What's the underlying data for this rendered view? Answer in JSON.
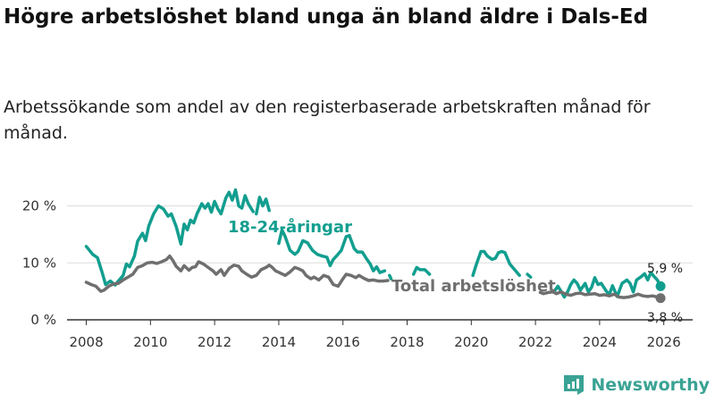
{
  "title": "Högre arbetslöshet bland unga än bland äldre i Dals-Ed",
  "subtitle": "Arbetssökande som andel av den registerbaserade arbetskraften månad för månad.",
  "brand": "Newsworthy",
  "colors": {
    "youth": "#129e8f",
    "total": "#6f6f6f",
    "grid": "#dddddd",
    "axis": "#333333",
    "brand": "#3aa394"
  },
  "chart_data": {
    "type": "line",
    "xlim": [
      2007.4,
      2026.9
    ],
    "ylim": [
      0,
      24
    ],
    "y_ticks": [
      0,
      10,
      20
    ],
    "y_tick_labels": [
      "0 %",
      "10 %",
      "20 %"
    ],
    "x_ticks": [
      "2008",
      "2010",
      "2012",
      "2014",
      "2016",
      "2018",
      "2020",
      "2022",
      "2024",
      "2026"
    ],
    "series": [
      {
        "name": "18-24-åringar",
        "label": "18-24-åringar",
        "end_label": "5,9 %",
        "segments": [
          [
            [
              2008.0,
              12.9
            ],
            [
              2008.2,
              11.5
            ],
            [
              2008.35,
              10.9
            ],
            [
              2008.5,
              8.2
            ],
            [
              2008.6,
              6.2
            ],
            [
              2008.75,
              6.8
            ],
            [
              2008.9,
              6.1
            ],
            [
              2009.0,
              6.8
            ],
            [
              2009.15,
              7.8
            ],
            [
              2009.25,
              9.8
            ],
            [
              2009.35,
              9.3
            ],
            [
              2009.5,
              11.2
            ],
            [
              2009.6,
              13.8
            ],
            [
              2009.75,
              15.2
            ],
            [
              2009.85,
              13.9
            ],
            [
              2009.95,
              16.5
            ],
            [
              2010.1,
              18.6
            ],
            [
              2010.25,
              20.0
            ],
            [
              2010.4,
              19.5
            ],
            [
              2010.55,
              18.2
            ],
            [
              2010.65,
              18.6
            ],
            [
              2010.8,
              16.4
            ],
            [
              2010.95,
              13.3
            ],
            [
              2011.05,
              16.8
            ],
            [
              2011.15,
              15.8
            ],
            [
              2011.25,
              17.5
            ],
            [
              2011.35,
              17.0
            ],
            [
              2011.45,
              18.6
            ],
            [
              2011.6,
              20.4
            ],
            [
              2011.7,
              19.6
            ],
            [
              2011.8,
              20.4
            ],
            [
              2011.9,
              18.9
            ],
            [
              2012.0,
              20.8
            ],
            [
              2012.1,
              19.5
            ],
            [
              2012.2,
              18.6
            ],
            [
              2012.35,
              21.4
            ],
            [
              2012.45,
              22.4
            ],
            [
              2012.55,
              21.0
            ],
            [
              2012.65,
              22.8
            ],
            [
              2012.75,
              20.0
            ],
            [
              2012.85,
              19.6
            ],
            [
              2012.95,
              21.8
            ],
            [
              2013.05,
              20.4
            ],
            [
              2013.2,
              19.0
            ]
          ],
          [
            [
              2013.3,
              18.6
            ],
            [
              2013.4,
              21.5
            ],
            [
              2013.5,
              20.0
            ],
            [
              2013.6,
              21.2
            ],
            [
              2013.7,
              19.2
            ]
          ],
          [
            [
              2014.0,
              13.4
            ],
            [
              2014.1,
              15.8
            ],
            [
              2014.2,
              14.6
            ],
            [
              2014.35,
              12.2
            ],
            [
              2014.5,
              11.5
            ],
            [
              2014.6,
              12.0
            ],
            [
              2014.75,
              13.9
            ],
            [
              2014.9,
              13.5
            ],
            [
              2015.05,
              12.2
            ],
            [
              2015.2,
              11.5
            ],
            [
              2015.35,
              11.2
            ],
            [
              2015.5,
              11.0
            ],
            [
              2015.6,
              9.5
            ],
            [
              2015.7,
              10.6
            ],
            [
              2015.8,
              11.2
            ],
            [
              2015.95,
              12.2
            ],
            [
              2016.1,
              14.6
            ],
            [
              2016.2,
              14.8
            ],
            [
              2016.35,
              12.5
            ],
            [
              2016.45,
              11.9
            ],
            [
              2016.6,
              11.9
            ],
            [
              2016.75,
              10.6
            ],
            [
              2016.85,
              9.8
            ],
            [
              2016.95,
              8.6
            ],
            [
              2017.05,
              9.3
            ],
            [
              2017.15,
              8.3
            ],
            [
              2017.3,
              8.6
            ]
          ],
          [
            [
              2017.45,
              7.8
            ],
            [
              2017.5,
              7.2
            ]
          ],
          [
            [
              2018.2,
              8.0
            ],
            [
              2018.3,
              9.2
            ],
            [
              2018.4,
              8.8
            ],
            [
              2018.55,
              8.8
            ],
            [
              2018.7,
              8.0
            ]
          ],
          [
            [
              2020.05,
              7.8
            ],
            [
              2020.15,
              9.6
            ],
            [
              2020.3,
              12.0
            ],
            [
              2020.4,
              12.0
            ],
            [
              2020.5,
              11.2
            ],
            [
              2020.65,
              10.6
            ],
            [
              2020.75,
              10.8
            ],
            [
              2020.85,
              11.8
            ],
            [
              2020.95,
              12.0
            ],
            [
              2021.05,
              11.8
            ],
            [
              2021.2,
              9.8
            ],
            [
              2021.35,
              8.8
            ],
            [
              2021.5,
              7.8
            ]
          ],
          [
            [
              2021.75,
              8.0
            ],
            [
              2021.85,
              7.5
            ]
          ],
          [
            [
              2022.6,
              5.1
            ],
            [
              2022.7,
              5.9
            ],
            [
              2022.8,
              5.0
            ],
            [
              2022.9,
              4.0
            ],
            [
              2023.0,
              4.9
            ],
            [
              2023.1,
              6.2
            ],
            [
              2023.2,
              7.0
            ],
            [
              2023.3,
              6.4
            ],
            [
              2023.4,
              5.2
            ],
            [
              2023.55,
              6.4
            ],
            [
              2023.65,
              4.9
            ],
            [
              2023.75,
              5.7
            ],
            [
              2023.85,
              7.4
            ],
            [
              2023.95,
              6.2
            ],
            [
              2024.05,
              6.4
            ],
            [
              2024.2,
              5.1
            ],
            [
              2024.3,
              4.4
            ],
            [
              2024.4,
              6.0
            ],
            [
              2024.55,
              4.1
            ],
            [
              2024.7,
              6.4
            ],
            [
              2024.85,
              7.0
            ],
            [
              2024.95,
              6.4
            ],
            [
              2025.05,
              4.9
            ],
            [
              2025.15,
              7.0
            ],
            [
              2025.3,
              7.6
            ],
            [
              2025.4,
              8.1
            ],
            [
              2025.5,
              7.0
            ],
            [
              2025.6,
              8.3
            ],
            [
              2025.7,
              7.6
            ],
            [
              2025.8,
              7.0
            ],
            [
              2025.9,
              5.9
            ]
          ]
        ]
      },
      {
        "name": "Total arbetslöshet",
        "label": "Total arbetslöshet",
        "end_label": "3,8 %",
        "segments": [
          [
            [
              2008.0,
              6.6
            ],
            [
              2008.15,
              6.2
            ],
            [
              2008.3,
              5.9
            ],
            [
              2008.45,
              5.0
            ],
            [
              2008.55,
              5.2
            ],
            [
              2008.7,
              5.9
            ],
            [
              2008.85,
              6.3
            ],
            [
              2009.0,
              6.4
            ],
            [
              2009.15,
              7.0
            ],
            [
              2009.3,
              7.5
            ],
            [
              2009.45,
              8.0
            ],
            [
              2009.6,
              9.2
            ],
            [
              2009.75,
              9.5
            ],
            [
              2009.9,
              10.0
            ],
            [
              2010.05,
              10.1
            ],
            [
              2010.2,
              9.9
            ],
            [
              2010.35,
              10.2
            ],
            [
              2010.5,
              10.6
            ],
            [
              2010.6,
              11.2
            ],
            [
              2010.7,
              10.4
            ],
            [
              2010.8,
              9.4
            ],
            [
              2010.95,
              8.6
            ],
            [
              2011.05,
              9.5
            ],
            [
              2011.2,
              8.7
            ],
            [
              2011.3,
              9.2
            ],
            [
              2011.4,
              9.3
            ],
            [
              2011.5,
              10.2
            ],
            [
              2011.65,
              9.8
            ],
            [
              2011.8,
              9.2
            ],
            [
              2011.95,
              8.6
            ],
            [
              2012.05,
              8.0
            ],
            [
              2012.2,
              8.8
            ],
            [
              2012.3,
              7.8
            ],
            [
              2012.45,
              9.0
            ],
            [
              2012.6,
              9.6
            ],
            [
              2012.75,
              9.4
            ],
            [
              2012.85,
              8.6
            ],
            [
              2013.0,
              8.0
            ],
            [
              2013.15,
              7.5
            ],
            [
              2013.3,
              7.8
            ],
            [
              2013.45,
              8.8
            ],
            [
              2013.6,
              9.2
            ],
            [
              2013.7,
              9.6
            ],
            [
              2013.8,
              9.2
            ],
            [
              2013.9,
              8.6
            ],
            [
              2014.05,
              8.2
            ],
            [
              2014.2,
              7.8
            ],
            [
              2014.35,
              8.4
            ],
            [
              2014.5,
              9.2
            ],
            [
              2014.6,
              9.0
            ],
            [
              2014.75,
              8.6
            ],
            [
              2014.85,
              7.8
            ],
            [
              2015.0,
              7.2
            ],
            [
              2015.1,
              7.5
            ],
            [
              2015.25,
              7.0
            ],
            [
              2015.4,
              7.8
            ],
            [
              2015.55,
              7.5
            ],
            [
              2015.7,
              6.2
            ],
            [
              2015.85,
              5.9
            ],
            [
              2016.0,
              7.2
            ],
            [
              2016.1,
              8.0
            ],
            [
              2016.25,
              7.8
            ],
            [
              2016.4,
              7.4
            ],
            [
              2016.5,
              7.8
            ],
            [
              2016.65,
              7.3
            ],
            [
              2016.8,
              6.9
            ],
            [
              2016.95,
              7.0
            ],
            [
              2017.1,
              6.8
            ],
            [
              2017.25,
              6.8
            ],
            [
              2017.4,
              6.9
            ]
          ],
          [
            [
              2022.15,
              4.8
            ],
            [
              2022.25,
              4.6
            ],
            [
              2022.4,
              4.8
            ],
            [
              2022.55,
              4.9
            ],
            [
              2022.65,
              4.6
            ],
            [
              2022.8,
              4.9
            ],
            [
              2022.95,
              4.5
            ],
            [
              2023.1,
              4.3
            ],
            [
              2023.25,
              4.6
            ],
            [
              2023.4,
              4.7
            ],
            [
              2023.55,
              4.4
            ],
            [
              2023.7,
              4.5
            ],
            [
              2023.85,
              4.6
            ],
            [
              2024.0,
              4.3
            ],
            [
              2024.15,
              4.4
            ],
            [
              2024.3,
              4.2
            ],
            [
              2024.45,
              4.5
            ],
            [
              2024.6,
              4.0
            ],
            [
              2024.75,
              3.9
            ],
            [
              2024.9,
              4.0
            ],
            [
              2025.05,
              4.2
            ],
            [
              2025.2,
              4.5
            ],
            [
              2025.35,
              4.2
            ],
            [
              2025.5,
              4.1
            ],
            [
              2025.65,
              4.2
            ],
            [
              2025.8,
              4.0
            ],
            [
              2025.9,
              3.8
            ]
          ]
        ]
      }
    ]
  }
}
